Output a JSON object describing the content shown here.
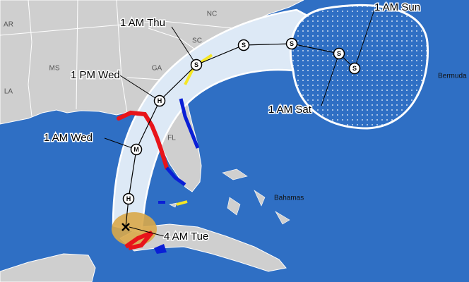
{
  "map": {
    "state_labels": [
      "AR",
      "MS",
      "LA",
      "GA",
      "SC",
      "NC",
      "FL"
    ],
    "place_labels": [
      "Bahamas",
      "Bermuda"
    ],
    "time_labels": [
      "1 AM Thu",
      "1 PM Wed",
      "1 AM Wed",
      "4 AM Tue",
      "1 AM Sat",
      "1 AM Sun"
    ],
    "points": [
      "H",
      "M",
      "H",
      "S",
      "S",
      "S",
      "S",
      "S"
    ]
  }
}
